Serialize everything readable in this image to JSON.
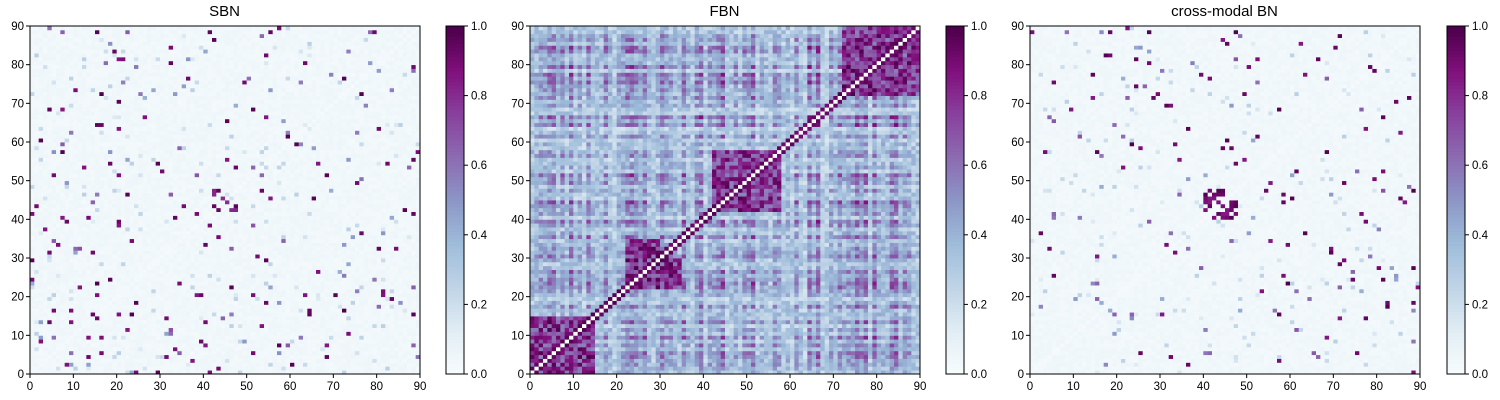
{
  "chart_data": [
    {
      "type": "heatmap",
      "title": "SBN",
      "matrix_size": 90,
      "xlim": [
        0,
        90
      ],
      "ylim": [
        0,
        90
      ],
      "xticks": [
        0,
        10,
        20,
        30,
        40,
        50,
        60,
        70,
        80,
        90
      ],
      "yticks": [
        0,
        10,
        20,
        30,
        40,
        50,
        60,
        70,
        80,
        90
      ],
      "colorbar": {
        "range": [
          0.0,
          1.0
        ],
        "ticks": [
          "0.0",
          "0.2",
          "0.4",
          "0.6",
          "0.8",
          "1.0"
        ]
      },
      "colormap": "BuPu",
      "density": "sparse",
      "symmetric": true,
      "strong_blocks": [
        [
          42,
          46,
          42,
          46
        ],
        [
          44,
          48,
          42,
          46
        ]
      ]
    },
    {
      "type": "heatmap",
      "title": "FBN",
      "matrix_size": 90,
      "xlim": [
        0,
        90
      ],
      "ylim": [
        0,
        90
      ],
      "xticks": [
        0,
        10,
        20,
        30,
        40,
        50,
        60,
        70,
        80,
        90
      ],
      "yticks": [
        0,
        10,
        20,
        30,
        40,
        50,
        60,
        70,
        80,
        90
      ],
      "colorbar": {
        "range": [
          0.0,
          1.0
        ],
        "ticks": [
          "0.0",
          "0.2",
          "0.4",
          "0.6",
          "0.8",
          "1.0"
        ]
      },
      "colormap": "BuPu",
      "density": "dense",
      "symmetric": true,
      "diagonal_value": 0,
      "strong_blocks": [
        [
          0,
          15,
          0,
          15
        ],
        [
          42,
          58,
          42,
          58
        ],
        [
          72,
          90,
          72,
          90
        ],
        [
          22,
          30,
          22,
          35
        ]
      ]
    },
    {
      "type": "heatmap",
      "title": "cross-modal BN",
      "matrix_size": 90,
      "xlim": [
        0,
        90
      ],
      "ylim": [
        0,
        90
      ],
      "xticks": [
        0,
        10,
        20,
        30,
        40,
        50,
        60,
        70,
        80,
        90
      ],
      "yticks": [
        0,
        10,
        20,
        30,
        40,
        50,
        60,
        70,
        80,
        90
      ],
      "colorbar": {
        "range": [
          0.0,
          1.0
        ],
        "ticks": [
          "0.0",
          "0.2",
          "0.4",
          "0.6",
          "0.8",
          "1.0"
        ]
      },
      "colormap": "BuPu",
      "density": "sparse",
      "symmetric": true,
      "strong_blocks": [
        [
          42,
          48,
          40,
          46
        ]
      ]
    }
  ],
  "colors": {
    "bupu": [
      "#f7fcfd",
      "#e0ecf4",
      "#bfd3e6",
      "#9ebcda",
      "#8c96c6",
      "#8c6bb1",
      "#88419d",
      "#810f7c",
      "#4d004b"
    ]
  }
}
